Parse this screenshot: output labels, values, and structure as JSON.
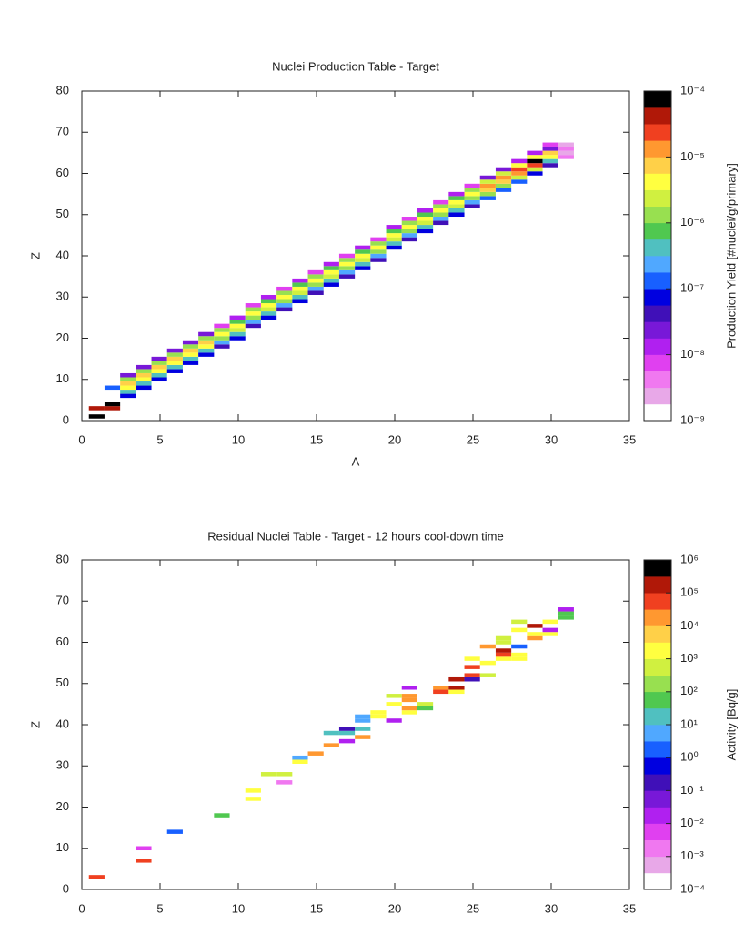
{
  "chart_data": [
    {
      "type": "heatmap",
      "title": "Nuclei Production Table - Target",
      "x_label": "A",
      "y_label": "Z",
      "colorbar_label": "Production Yield [#nuclei/g/primary]",
      "xlim": [
        0,
        35
      ],
      "xticks": [
        0,
        5,
        10,
        15,
        20,
        25,
        30,
        35
      ],
      "ylim": [
        0,
        80
      ],
      "yticks": [
        0,
        10,
        20,
        30,
        40,
        50,
        60,
        70,
        80
      ],
      "zlim": [
        1e-09,
        0.0001
      ],
      "zlog": true,
      "zticks": [
        {
          "value": 0.0001,
          "label": "10⁻⁴"
        },
        {
          "value": 1e-05,
          "label": "10⁻⁵"
        },
        {
          "value": 1e-06,
          "label": "10⁻⁶"
        },
        {
          "value": 1e-07,
          "label": "10⁻⁷"
        },
        {
          "value": 1e-08,
          "label": "10⁻⁸"
        },
        {
          "value": 1e-09,
          "label": "10⁻⁹"
        }
      ],
      "colormap": [
        "#ffffff",
        "#e8a8e8",
        "#f078f0",
        "#e040f0",
        "#b020f0",
        "#7818d8",
        "#4010b8",
        "#0000e0",
        "#1860ff",
        "#50a8ff",
        "#50c0c0",
        "#50c850",
        "#98e050",
        "#d0f040",
        "#ffff40",
        "#ffd048",
        "#ff9830",
        "#f04020",
        "#b01808",
        "#000000"
      ],
      "x": [
        1,
        1,
        2,
        2,
        2,
        3,
        3,
        3,
        3,
        3,
        3,
        4,
        4,
        4,
        4,
        4,
        4,
        5,
        5,
        5,
        5,
        5,
        5,
        6,
        6,
        6,
        6,
        6,
        6,
        7,
        7,
        7,
        7,
        7,
        7,
        8,
        8,
        8,
        8,
        8,
        8,
        9,
        9,
        9,
        9,
        9,
        9,
        10,
        10,
        10,
        10,
        10,
        10,
        11,
        11,
        11,
        11,
        11,
        11,
        12,
        12,
        12,
        12,
        12,
        12,
        13,
        13,
        13,
        13,
        13,
        13,
        14,
        14,
        14,
        14,
        14,
        14,
        15,
        15,
        15,
        15,
        15,
        15,
        16,
        16,
        16,
        16,
        16,
        16,
        17,
        17,
        17,
        17,
        17,
        17,
        18,
        18,
        18,
        18,
        18,
        18,
        19,
        19,
        19,
        19,
        19,
        19,
        20,
        20,
        20,
        20,
        20,
        20,
        21,
        21,
        21,
        21,
        21,
        21,
        22,
        22,
        22,
        22,
        22,
        22,
        23,
        23,
        23,
        23,
        23,
        23,
        24,
        24,
        24,
        24,
        24,
        24,
        25,
        25,
        25,
        25,
        25,
        25,
        26,
        26,
        26,
        26,
        26,
        26,
        27,
        27,
        27,
        27,
        27,
        27,
        28,
        28,
        28,
        28,
        28,
        28,
        29,
        29,
        29,
        29,
        29,
        29,
        30,
        30,
        30,
        30,
        30,
        30,
        31,
        31,
        31,
        31
      ],
      "y": [
        1,
        3,
        3,
        4,
        8,
        6,
        7,
        8,
        9,
        10,
        11,
        8,
        9,
        10,
        11,
        12,
        13,
        10,
        11,
        12,
        13,
        14,
        15,
        12,
        13,
        14,
        15,
        16,
        17,
        14,
        15,
        16,
        17,
        18,
        19,
        16,
        17,
        18,
        19,
        20,
        21,
        18,
        19,
        20,
        21,
        22,
        23,
        20,
        21,
        22,
        23,
        24,
        25,
        23,
        24,
        25,
        26,
        27,
        28,
        25,
        26,
        27,
        28,
        29,
        30,
        27,
        28,
        29,
        30,
        31,
        32,
        29,
        30,
        31,
        32,
        33,
        34,
        31,
        32,
        33,
        34,
        35,
        36,
        33,
        34,
        35,
        36,
        37,
        38,
        35,
        36,
        37,
        38,
        39,
        40,
        37,
        38,
        39,
        40,
        41,
        42,
        39,
        40,
        41,
        42,
        43,
        44,
        42,
        43,
        44,
        45,
        46,
        47,
        44,
        45,
        46,
        47,
        48,
        49,
        46,
        47,
        48,
        49,
        50,
        51,
        48,
        49,
        50,
        51,
        52,
        53,
        50,
        51,
        52,
        53,
        54,
        55,
        52,
        53,
        54,
        55,
        56,
        57,
        54,
        55,
        56,
        57,
        58,
        59,
        56,
        57,
        58,
        59,
        60,
        61,
        58,
        59,
        60,
        61,
        62,
        63,
        60,
        61,
        62,
        63,
        64,
        65,
        62,
        63,
        64,
        65,
        66,
        67,
        64,
        65,
        66,
        67
      ],
      "values": [
        7e-05,
        4e-05,
        4e-05,
        7e-05,
        1.3e-07,
        7e-08,
        4e-07,
        4e-06,
        7e-06,
        1.3e-06,
        2.4e-08,
        7e-08,
        4e-07,
        4e-06,
        7e-06,
        1.3e-06,
        2.4e-08,
        7e-08,
        4e-07,
        4e-06,
        7e-06,
        1.3e-06,
        2.4e-08,
        7e-08,
        4e-07,
        4e-06,
        7e-06,
        1.3e-06,
        2.4e-08,
        7e-08,
        4e-07,
        4e-06,
        7e-06,
        1.3e-06,
        2.4e-08,
        7e-08,
        4e-07,
        4e-06,
        7e-06,
        1.3e-06,
        2.4e-08,
        4e-08,
        2.4e-07,
        1.3e-06,
        4e-06,
        1.3e-06,
        7e-09,
        7e-08,
        4e-07,
        2.4e-06,
        4e-06,
        7e-07,
        1.3e-08,
        4e-08,
        2.4e-07,
        1.3e-06,
        4e-06,
        1.3e-06,
        7e-09,
        7e-08,
        4e-07,
        2.4e-06,
        4e-06,
        7e-07,
        1.3e-08,
        4e-08,
        2.4e-07,
        1.3e-06,
        4e-06,
        1.3e-06,
        7e-09,
        7e-08,
        4e-07,
        2.4e-06,
        4e-06,
        7e-07,
        1.3e-08,
        4e-08,
        2.4e-07,
        1.3e-06,
        4e-06,
        1.3e-06,
        7e-09,
        7e-08,
        4e-07,
        2.4e-06,
        4e-06,
        7e-07,
        1.3e-08,
        4e-08,
        2.4e-07,
        1.3e-06,
        4e-06,
        1.3e-06,
        7e-09,
        7e-08,
        4e-07,
        2.4e-06,
        4e-06,
        7e-07,
        1.3e-08,
        4e-08,
        2.4e-07,
        1.3e-06,
        4e-06,
        1.3e-06,
        7e-09,
        7e-08,
        4e-07,
        2.4e-06,
        4e-06,
        7e-07,
        1.3e-08,
        4e-08,
        2.4e-07,
        1.3e-06,
        4e-06,
        1.3e-06,
        7e-09,
        7e-08,
        4e-07,
        2.4e-06,
        4e-06,
        7e-07,
        1.3e-08,
        4e-08,
        2.4e-07,
        1.3e-06,
        4e-06,
        1.3e-06,
        7e-09,
        7e-08,
        4e-07,
        2.4e-06,
        4e-06,
        7e-07,
        1.3e-08,
        4e-08,
        2.4e-07,
        1.3e-06,
        4e-06,
        1.3e-06,
        7e-09,
        1.3e-07,
        1.3e-06,
        7e-06,
        1.3e-05,
        2.4e-06,
        2.4e-08,
        1.3e-07,
        1.3e-06,
        7e-06,
        1.3e-05,
        2.4e-06,
        2.4e-08,
        1.3e-07,
        2.4e-06,
        1.3e-05,
        2.4e-05,
        4e-06,
        1.3e-08,
        7e-08,
        2.4e-06,
        2.4e-05,
        7e-05,
        4e-06,
        1.3e-08,
        4e-08,
        4e-07,
        4e-06,
        7e-06,
        2.4e-08,
        7e-09,
        4e-09,
        2e-09,
        4e-09,
        2e-09
      ]
    },
    {
      "type": "heatmap",
      "title": "Residual Nuclei Table - Target - 12 hours cool-down time",
      "y_label": "Z",
      "colorbar_label": "Activity [Bq/g]",
      "xlim": [
        0,
        35
      ],
      "xticks": [
        0,
        5,
        10,
        15,
        20,
        25,
        30,
        35
      ],
      "ylim": [
        0,
        80
      ],
      "yticks": [
        0,
        10,
        20,
        30,
        40,
        50,
        60,
        70,
        80
      ],
      "zlim": [
        0.0001,
        1000000.0
      ],
      "zlog": true,
      "zticks": [
        {
          "value": 1000000.0,
          "label": "10⁶"
        },
        {
          "value": 100000.0,
          "label": "10⁵"
        },
        {
          "value": 10000.0,
          "label": "10⁴"
        },
        {
          "value": 1000.0,
          "label": "10³"
        },
        {
          "value": 100.0,
          "label": "10²"
        },
        {
          "value": 10.0,
          "label": "10¹"
        },
        {
          "value": 1,
          "label": "10⁰"
        },
        {
          "value": 0.1,
          "label": "10⁻¹"
        },
        {
          "value": 0.01,
          "label": "10⁻²"
        },
        {
          "value": 0.001,
          "label": "10⁻³"
        },
        {
          "value": 0.0001,
          "label": "10⁻⁴"
        }
      ],
      "colormap": [
        "#ffffff",
        "#e8a8e8",
        "#f078f0",
        "#e040f0",
        "#b020f0",
        "#7818d8",
        "#4010b8",
        "#0000e0",
        "#1860ff",
        "#50a8ff",
        "#50c0c0",
        "#50c850",
        "#98e050",
        "#d0f040",
        "#ffff40",
        "#ffd048",
        "#ff9830",
        "#f04020",
        "#b01808",
        "#000000"
      ],
      "x": [
        1,
        4,
        4,
        6,
        9,
        11,
        11,
        12,
        13,
        13,
        14,
        14,
        15,
        16,
        16,
        17,
        17,
        17,
        18,
        18,
        18,
        18,
        19,
        19,
        20,
        20,
        20,
        21,
        21,
        21,
        21,
        21,
        22,
        22,
        23,
        23,
        24,
        24,
        24,
        25,
        25,
        25,
        25,
        26,
        26,
        26,
        27,
        27,
        27,
        27,
        27,
        28,
        28,
        28,
        28,
        28,
        29,
        29,
        29,
        30,
        30,
        30,
        31,
        31,
        31
      ],
      "y": [
        3,
        7,
        10,
        14,
        18,
        22,
        24,
        28,
        28,
        26,
        31,
        32,
        33,
        35,
        38,
        36,
        38,
        39,
        37,
        39,
        41,
        42,
        42,
        43,
        41,
        45,
        47,
        43,
        44,
        46,
        47,
        49,
        44,
        45,
        48,
        49,
        48,
        49,
        51,
        51,
        52,
        54,
        56,
        52,
        55,
        59,
        56,
        57,
        58,
        60,
        61,
        56,
        57,
        59,
        63,
        65,
        61,
        62,
        64,
        62,
        63,
        65,
        66,
        67,
        68
      ],
      "values": [
        40000.0,
        40000.0,
        0.005,
        2,
        50,
        2000,
        2000,
        500,
        500,
        0.002,
        2000,
        5,
        20000.0,
        20000.0,
        20,
        0.02,
        20,
        0.2,
        20000.0,
        20,
        5,
        5,
        2000,
        2000,
        0.02,
        2000,
        500,
        2000,
        20000.0,
        20000.0,
        20000.0,
        0.02,
        50,
        500,
        40000.0,
        20000.0,
        2000,
        200000.0,
        200000.0,
        0.2,
        40000.0,
        40000.0,
        2000,
        500,
        2000,
        20000.0,
        2000,
        40000.0,
        200000.0,
        500,
        500,
        2000,
        2000,
        2,
        2000,
        500,
        20000.0,
        2000,
        200000.0,
        2000,
        0.02,
        2000,
        50,
        50,
        0.02
      ]
    }
  ]
}
